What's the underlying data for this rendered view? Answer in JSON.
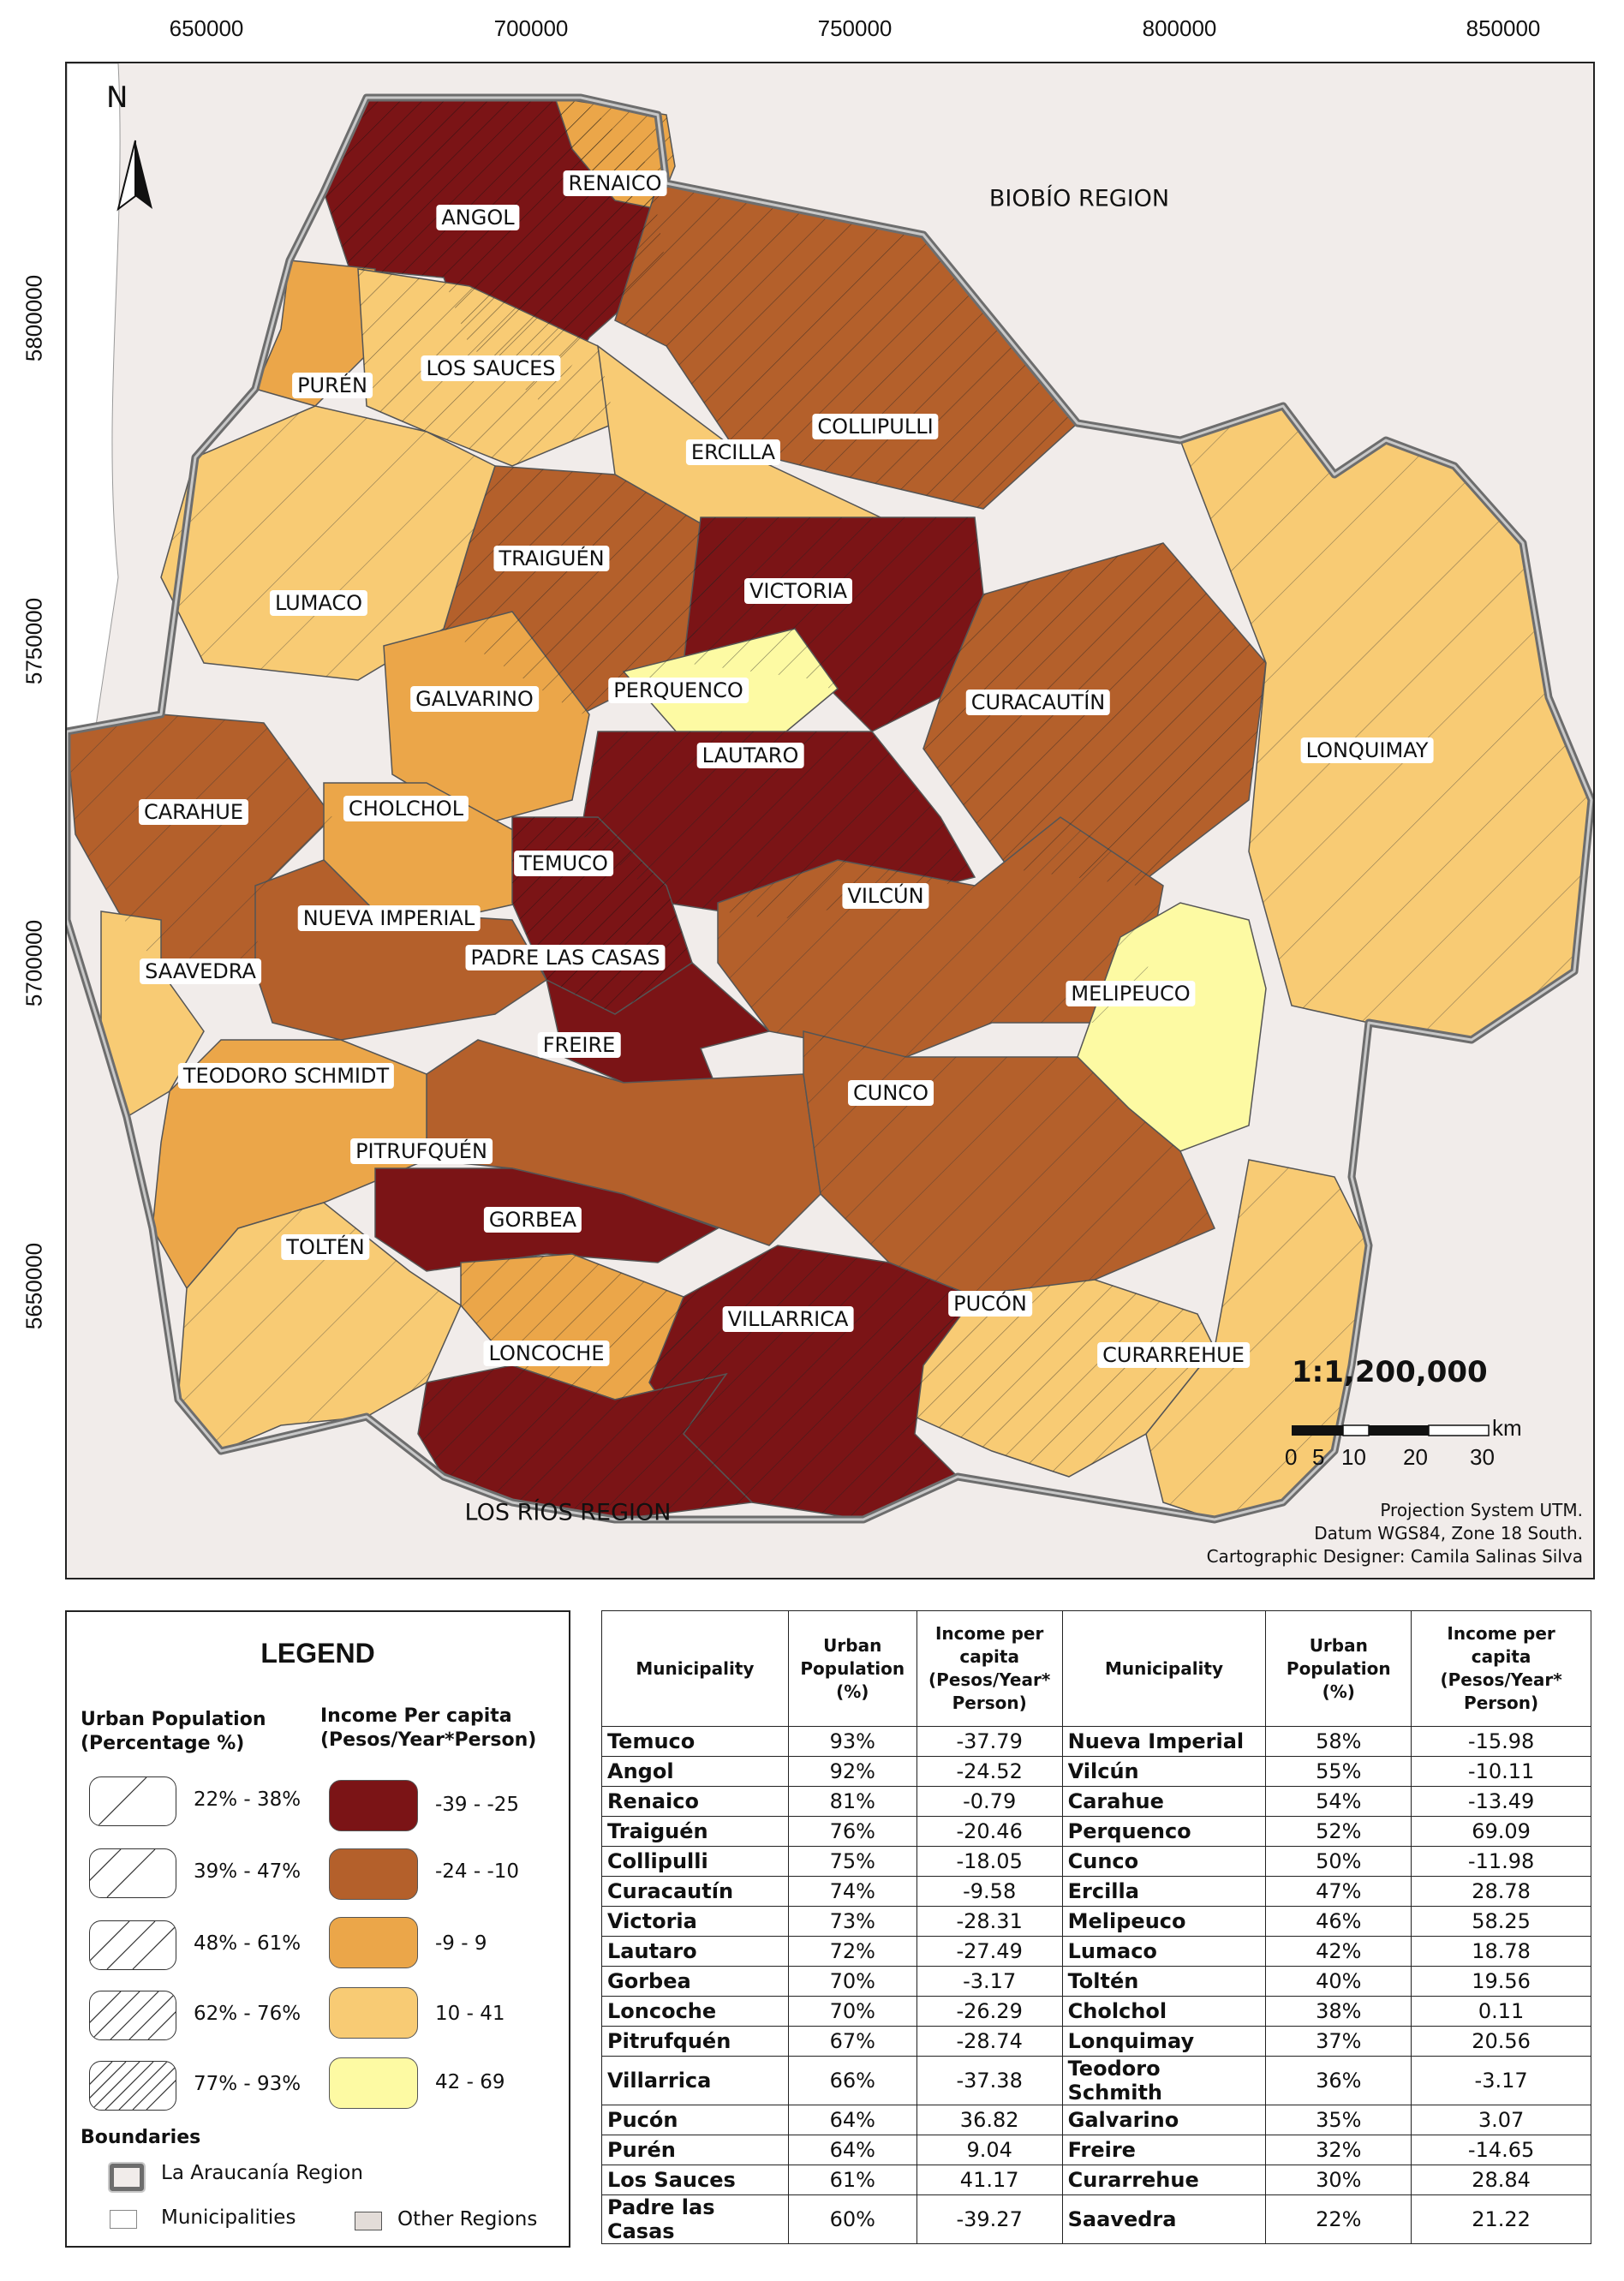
{
  "axes": {
    "x_ticks": [
      "650000",
      "700000",
      "750000",
      "800000",
      "850000"
    ],
    "y_ticks": [
      "5800000",
      "5750000",
      "5700000",
      "5650000"
    ]
  },
  "north_arrow": {
    "letter": "N",
    "icon": "north-arrow-icon"
  },
  "regions": {
    "biobio": "BIOBÍO REGION",
    "los_rios": "LOS RÍOS REGION"
  },
  "municipality_labels": [
    "ANGOL",
    "RENAICO",
    "PURÉN",
    "LOS SAUCES",
    "COLLIPULLI",
    "ERCILLA",
    "TRAIGUÉN",
    "LUMACO",
    "VICTORIA",
    "GALVARINO",
    "PERQUENCO",
    "CURACAUTÍN",
    "LONQUIMAY",
    "LAUTARO",
    "CARAHUE",
    "CHOLCHOL",
    "TEMUCO",
    "VILCÚN",
    "NUEVA IMPERIAL",
    "PADRE LAS CASAS",
    "SAAVEDRA",
    "MELIPEUCO",
    "FREIRE",
    "TEODORO SCHMIDT",
    "CUNCO",
    "PITRUFQUÉN",
    "GORBEA",
    "TOLTÉN",
    "PUCÓN",
    "VILLARRICA",
    "LONCOCHE",
    "CURARREHUE"
  ],
  "scale": {
    "ratio": "1:1,200,000",
    "unit": "km",
    "ticks": [
      "0",
      "5",
      "10",
      "20",
      "30"
    ]
  },
  "credits": [
    "Projection System UTM.",
    "Datum WGS84, Zone 18 South.",
    "Cartographic Designer: Camila Salinas Silva"
  ],
  "legend": {
    "title": "LEGEND",
    "urban_heading_1": "Urban Population",
    "urban_heading_2": "(Percentage %)",
    "income_heading_1": "Income Per capita",
    "income_heading_2": "(Pesos/Year*Person)",
    "urban_classes": [
      "22% - 38%",
      "39% - 47%",
      "48% - 61%",
      "62% - 76%",
      "77% - 93%"
    ],
    "income_classes": [
      {
        "label": "-39 - -25",
        "color": "#7b1416"
      },
      {
        "label": "-24 - -10",
        "color": "#b4602b"
      },
      {
        "label": "-9 - 9",
        "color": "#eba649"
      },
      {
        "label": "10 - 41",
        "color": "#f8cb74"
      },
      {
        "label": "42 - 69",
        "color": "#fdfaa3"
      }
    ],
    "boundaries_heading": "Boundaries",
    "region_boundary": "La Araucanía Region",
    "municipalities": "Municipalities",
    "other_regions": "Other Regions"
  },
  "table": {
    "headers": {
      "municipality": "Municipality",
      "urban_1": "Urban",
      "urban_2": "Population",
      "urban_3": "(%)",
      "income_1": "Income per",
      "income_2": "capita",
      "income_3": "(Pesos/Year*",
      "income_4": "Person)"
    },
    "rows": [
      {
        "m1": "Temuco",
        "u1": "93%",
        "i1": "-37.79",
        "m2": "Nueva Imperial",
        "u2": "58%",
        "i2": "-15.98"
      },
      {
        "m1": "Angol",
        "u1": "92%",
        "i1": "-24.52",
        "m2": "Vilcún",
        "u2": "55%",
        "i2": "-10.11"
      },
      {
        "m1": "Renaico",
        "u1": "81%",
        "i1": "-0.79",
        "m2": "Carahue",
        "u2": "54%",
        "i2": "-13.49"
      },
      {
        "m1": "Traiguén",
        "u1": "76%",
        "i1": "-20.46",
        "m2": "Perquenco",
        "u2": "52%",
        "i2": "69.09"
      },
      {
        "m1": "Collipulli",
        "u1": "75%",
        "i1": "-18.05",
        "m2": "Cunco",
        "u2": "50%",
        "i2": "-11.98"
      },
      {
        "m1": "Curacautín",
        "u1": "74%",
        "i1": "-9.58",
        "m2": "Ercilla",
        "u2": "47%",
        "i2": "28.78"
      },
      {
        "m1": "Victoria",
        "u1": "73%",
        "i1": "-28.31",
        "m2": "Melipeuco",
        "u2": "46%",
        "i2": "58.25"
      },
      {
        "m1": "Lautaro",
        "u1": "72%",
        "i1": "-27.49",
        "m2": "Lumaco",
        "u2": "42%",
        "i2": "18.78"
      },
      {
        "m1": "Gorbea",
        "u1": "70%",
        "i1": "-3.17",
        "m2": "Toltén",
        "u2": "40%",
        "i2": "19.56"
      },
      {
        "m1": "Loncoche",
        "u1": "70%",
        "i1": "-26.29",
        "m2": "Cholchol",
        "u2": "38%",
        "i2": "0.11"
      },
      {
        "m1": "Pitrufquén",
        "u1": "67%",
        "i1": "-28.74",
        "m2": "Lonquimay",
        "u2": "37%",
        "i2": "20.56"
      },
      {
        "m1": "Villarrica",
        "u1": "66%",
        "i1": "-37.38",
        "m2": "Teodoro Schmith",
        "u2": "36%",
        "i2": "-3.17"
      },
      {
        "m1": "Pucón",
        "u1": "64%",
        "i1": "36.82",
        "m2": "Galvarino",
        "u2": "35%",
        "i2": "3.07"
      },
      {
        "m1": "Purén",
        "u1": "64%",
        "i1": "9.04",
        "m2": "Freire",
        "u2": "32%",
        "i2": "-14.65"
      },
      {
        "m1": "Los Sauces",
        "u1": "61%",
        "i1": "41.17",
        "m2": "Curarrehue",
        "u2": "30%",
        "i2": "28.84"
      },
      {
        "m1": "Padre las Casas",
        "u1": "60%",
        "i1": "-39.27",
        "m2": "Saavedra",
        "u2": "22%",
        "i2": "21.22"
      }
    ]
  }
}
